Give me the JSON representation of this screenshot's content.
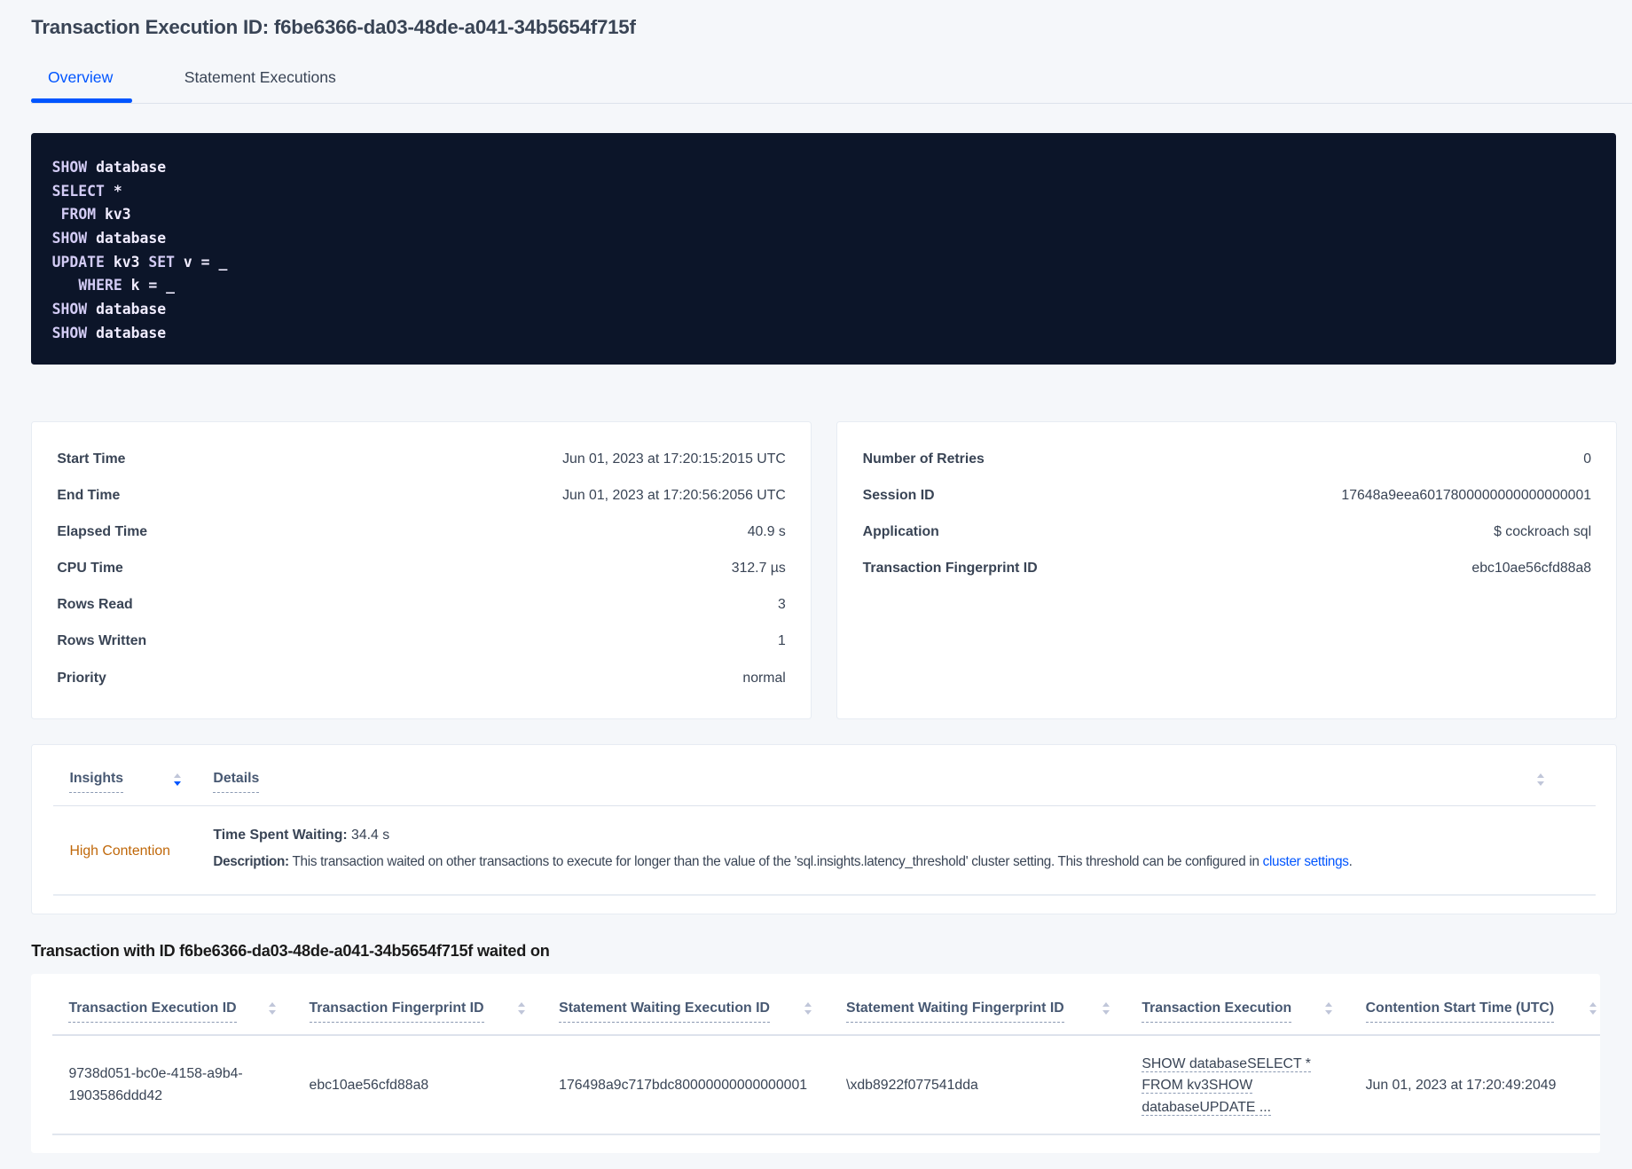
{
  "header": {
    "title": "Transaction Execution ID: f6be6366-da03-48de-a041-34b5654f715f"
  },
  "tabs": [
    {
      "label": "Overview",
      "active": true
    },
    {
      "label": "Statement Executions",
      "active": false
    }
  ],
  "colors": {
    "accent": "#0055ff",
    "code_bg": "#0c1529",
    "insight": "#c0680a"
  },
  "sql": [
    "SHOW database",
    "SELECT *",
    " FROM kv3",
    "SHOW database",
    "UPDATE kv3 SET v = _",
    "   WHERE k = _",
    "SHOW database",
    "SHOW database"
  ],
  "summary_left": [
    {
      "label": "Start Time",
      "value": "Jun 01, 2023 at 17:20:15:2015 UTC"
    },
    {
      "label": "End Time",
      "value": "Jun 01, 2023 at 17:20:56:2056 UTC"
    },
    {
      "label": "Elapsed Time",
      "value": "40.9 s"
    },
    {
      "label": "CPU Time",
      "value": "312.7 µs"
    },
    {
      "label": "Rows Read",
      "value": "3"
    },
    {
      "label": "Rows Written",
      "value": "1"
    },
    {
      "label": "Priority",
      "value": "normal"
    }
  ],
  "summary_right": [
    {
      "label": "Number of Retries",
      "value": "0"
    },
    {
      "label": "Session ID",
      "value": "17648a9eea6017800000000000000001"
    },
    {
      "label": "Application",
      "value": "$ cockroach sql"
    },
    {
      "label": "Transaction Fingerprint ID",
      "value": "ebc10ae56cfd88a8"
    }
  ],
  "insights": {
    "headers": [
      "Insights",
      "Details"
    ],
    "row": {
      "insight": "High Contention",
      "time_label": "Time Spent Waiting:",
      "time_value": " 34.4 s",
      "desc_label": "Description:",
      "desc_text": " This transaction waited on other transactions to execute for longer than the value of the 'sql.insights.latency_threshold' cluster setting. This threshold can be configured in ",
      "desc_link": "cluster settings",
      "desc_end": "."
    }
  },
  "waited": {
    "heading": "Transaction with ID f6be6366-da03-48de-a041-34b5654f715f waited on",
    "columns": [
      "Transaction Execution ID",
      "Transaction Fingerprint ID",
      "Statement Waiting Execution ID",
      "Statement Waiting Fingerprint ID",
      "Transaction Execution",
      "Contention Start Time (UTC)"
    ],
    "rows": [
      {
        "exec_id_1": "9738d051-bc0e-4158-a9b4-",
        "exec_id_2": "1903586ddd42",
        "fingerprint": "ebc10ae56cfd88a8",
        "stmt_exec_id": "176498a9c717bdc80000000000000001",
        "stmt_fp_id": "\\xdb8922f077541dda",
        "txn_1": "SHOW databaseSELECT *",
        "txn_2": "FROM kv3SHOW",
        "txn_3": "databaseUPDATE ...",
        "start": "Jun 01, 2023 at 17:20:49:2049"
      }
    ]
  }
}
